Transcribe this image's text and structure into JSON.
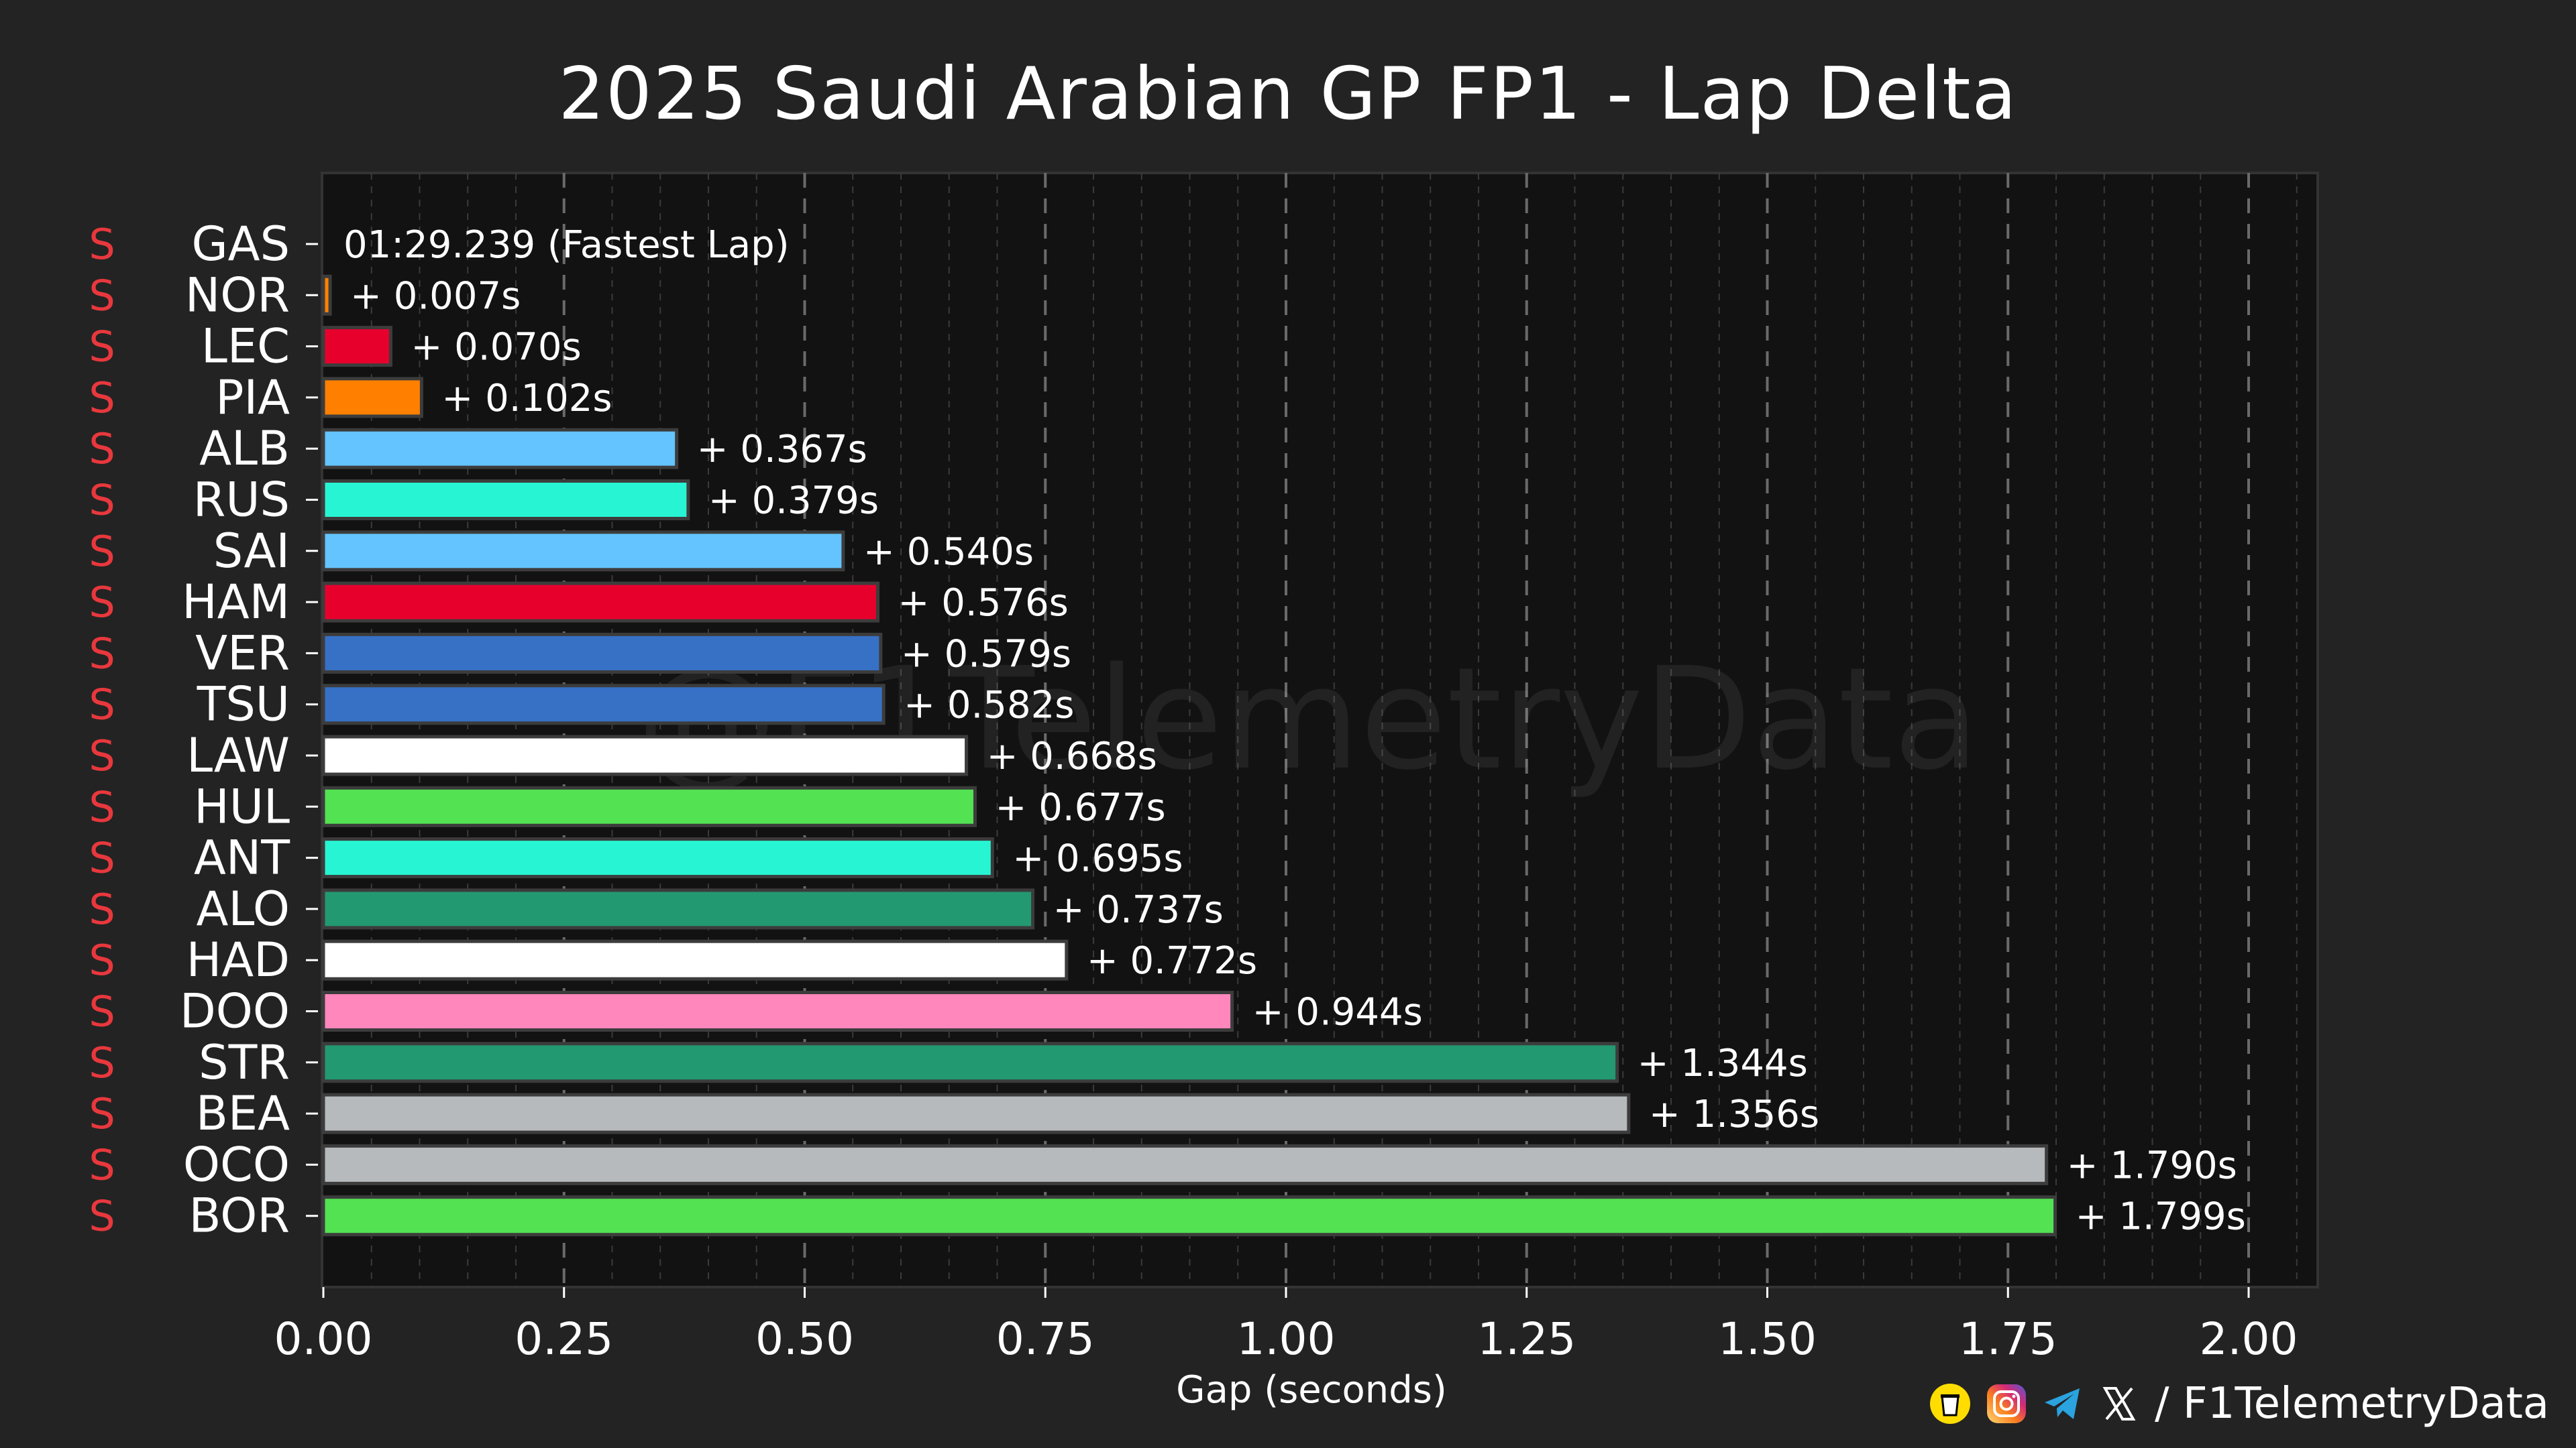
{
  "chart_data": {
    "type": "bar",
    "orientation": "horizontal",
    "title": "2025 Saudi Arabian GP FP1 - Lap Delta",
    "xlabel": "Gap (seconds)",
    "xlim": [
      0,
      2.08
    ],
    "xticks": [
      "0.00",
      "0.25",
      "0.50",
      "0.75",
      "1.00",
      "1.25",
      "1.50",
      "1.75",
      "2.00"
    ],
    "grid": true,
    "watermark": "@F1TelemetryData",
    "fastest_label": "01:29.239 (Fastest Lap)",
    "tyre_colors": {
      "S": "#e8383d"
    },
    "bars": [
      {
        "driver": "GAS",
        "tyre": "S",
        "gap": 0.0,
        "label": "01:29.239 (Fastest Lap)",
        "color": "#2293d1"
      },
      {
        "driver": "NOR",
        "tyre": "S",
        "gap": 0.007,
        "label": "+ 0.007s",
        "color": "#ff8000"
      },
      {
        "driver": "LEC",
        "tyre": "S",
        "gap": 0.07,
        "label": "+ 0.070s",
        "color": "#e8002d"
      },
      {
        "driver": "PIA",
        "tyre": "S",
        "gap": 0.102,
        "label": "+ 0.102s",
        "color": "#ff8000"
      },
      {
        "driver": "ALB",
        "tyre": "S",
        "gap": 0.367,
        "label": "+ 0.367s",
        "color": "#64c4ff"
      },
      {
        "driver": "RUS",
        "tyre": "S",
        "gap": 0.379,
        "label": "+ 0.379s",
        "color": "#27f4d2"
      },
      {
        "driver": "SAI",
        "tyre": "S",
        "gap": 0.54,
        "label": "+ 0.540s",
        "color": "#64c4ff"
      },
      {
        "driver": "HAM",
        "tyre": "S",
        "gap": 0.576,
        "label": "+ 0.576s",
        "color": "#e8002d"
      },
      {
        "driver": "VER",
        "tyre": "S",
        "gap": 0.579,
        "label": "+ 0.579s",
        "color": "#3671c6"
      },
      {
        "driver": "TSU",
        "tyre": "S",
        "gap": 0.582,
        "label": "+ 0.582s",
        "color": "#3671c6"
      },
      {
        "driver": "LAW",
        "tyre": "S",
        "gap": 0.668,
        "label": "+ 0.668s",
        "color": "#ffffff"
      },
      {
        "driver": "HUL",
        "tyre": "S",
        "gap": 0.677,
        "label": "+ 0.677s",
        "color": "#52e252"
      },
      {
        "driver": "ANT",
        "tyre": "S",
        "gap": 0.695,
        "label": "+ 0.695s",
        "color": "#27f4d2"
      },
      {
        "driver": "ALO",
        "tyre": "S",
        "gap": 0.737,
        "label": "+ 0.737s",
        "color": "#229971"
      },
      {
        "driver": "HAD",
        "tyre": "S",
        "gap": 0.772,
        "label": "+ 0.772s",
        "color": "#ffffff"
      },
      {
        "driver": "DOO",
        "tyre": "S",
        "gap": 0.944,
        "label": "+ 0.944s",
        "color": "#ff87bc"
      },
      {
        "driver": "STR",
        "tyre": "S",
        "gap": 1.344,
        "label": "+ 1.344s",
        "color": "#229971"
      },
      {
        "driver": "BEA",
        "tyre": "S",
        "gap": 1.356,
        "label": "+ 1.356s",
        "color": "#b6babd"
      },
      {
        "driver": "OCO",
        "tyre": "S",
        "gap": 1.79,
        "label": "+ 1.790s",
        "color": "#b6babd"
      },
      {
        "driver": "BOR",
        "tyre": "S",
        "gap": 1.799,
        "label": "+ 1.799s",
        "color": "#52e252"
      }
    ]
  },
  "footer": {
    "handle": "/ F1TelemetryData",
    "icons": [
      "buymeacoffee-icon",
      "instagram-icon",
      "telegram-icon",
      "x-icon"
    ]
  }
}
